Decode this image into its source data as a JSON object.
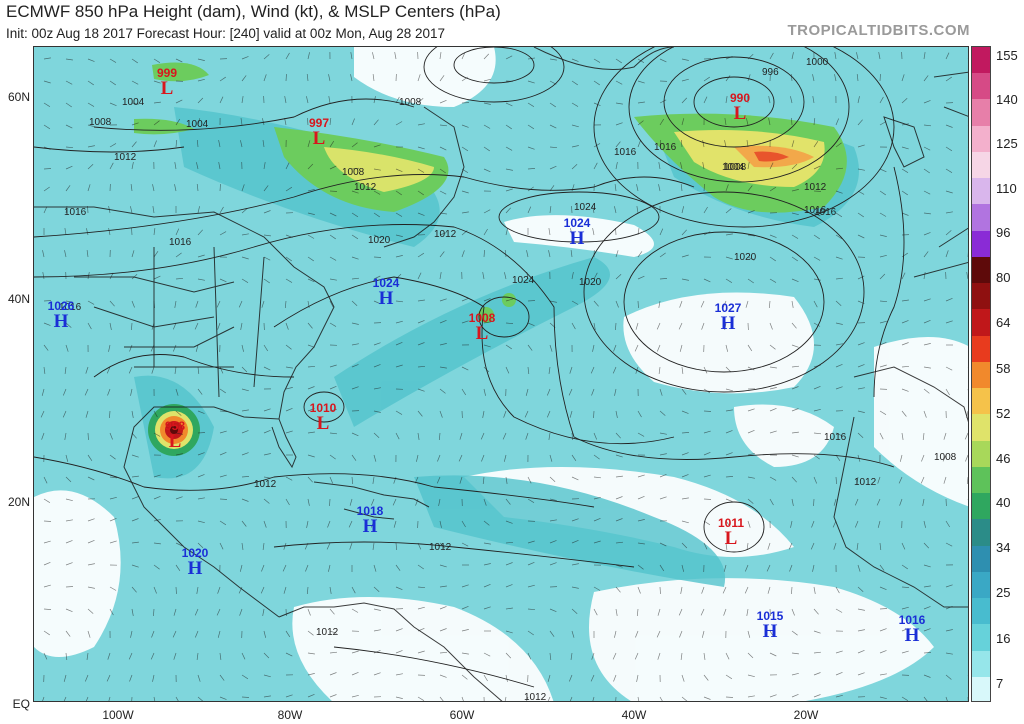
{
  "header": {
    "title": "ECMWF 850 hPa Height (dam), Wind (kt), & MSLP Centers (hPa)",
    "subtitle": "Init: 00z Aug 18 2017   Forecast Hour: [240]   valid at 00z Mon, Aug 28 2017",
    "site": "TROPICALTIDBITS.COM"
  },
  "axes": {
    "lat_labels": [
      "60N",
      "40N",
      "20N",
      "EQ"
    ],
    "lon_labels": [
      "100W",
      "80W",
      "60W",
      "40W",
      "20W"
    ]
  },
  "colorbar": {
    "labels": [
      "155",
      "140",
      "125",
      "110",
      "96",
      "80",
      "64",
      "58",
      "52",
      "46",
      "40",
      "34",
      "25",
      "16",
      "7"
    ],
    "colors": [
      "#c1195f",
      "#d64a86",
      "#e77fa9",
      "#f3b0cc",
      "#f6d6e6",
      "#d9b6ec",
      "#b174e0",
      "#8a2bd6",
      "#5e0a0a",
      "#8f1010",
      "#c0171a",
      "#e83b1e",
      "#f1892c",
      "#f5c24a",
      "#dfe36a",
      "#a8d85a",
      "#5ec25a",
      "#2fa75f",
      "#2b8c88",
      "#2e8fb0",
      "#3aa8c5",
      "#48bccf",
      "#66d2da",
      "#96e6ea",
      "#d8f8fa"
    ]
  },
  "centers": [
    {
      "type": "L",
      "pressure": "999"
    },
    {
      "type": "L",
      "pressure": "997"
    },
    {
      "type": "L",
      "pressure": "990"
    },
    {
      "type": "H",
      "pressure": "1024"
    },
    {
      "type": "H",
      "pressure": "1024"
    },
    {
      "type": "H",
      "pressure": "1026"
    },
    {
      "type": "L",
      "pressure": "1008"
    },
    {
      "type": "H",
      "pressure": "1027"
    },
    {
      "type": "L",
      "pressure": "958"
    },
    {
      "type": "L",
      "pressure": "1010"
    },
    {
      "type": "H",
      "pressure": "1018"
    },
    {
      "type": "H",
      "pressure": "1020"
    },
    {
      "type": "L",
      "pressure": "1011"
    },
    {
      "type": "H",
      "pressure": "1015"
    },
    {
      "type": "H",
      "pressure": "1016"
    }
  ],
  "isobar_labels": [
    "1004",
    "1004",
    "1008",
    "1008",
    "1012",
    "1012",
    "1016",
    "1016",
    "1016",
    "1020",
    "1020",
    "1024",
    "1024",
    "1016",
    "1008",
    "1012",
    "1016",
    "1020",
    "1016",
    "1012",
    "1012",
    "1012",
    "996",
    "1000",
    "1004",
    "1008",
    "1012",
    "1016",
    "1016",
    "1008",
    "1012",
    "1012"
  ]
}
